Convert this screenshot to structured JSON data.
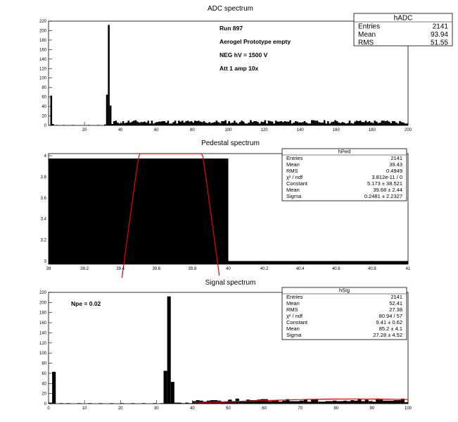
{
  "chart_data": [
    {
      "type": "bar",
      "title": "ADC spectrum",
      "xlim": [
        0,
        200
      ],
      "ylim": [
        0,
        220
      ],
      "bin_width": 1,
      "xticks": [
        20,
        40,
        60,
        80,
        100,
        120,
        140,
        160,
        180,
        200
      ],
      "yticks": [
        0,
        20,
        40,
        60,
        80,
        100,
        120,
        140,
        160,
        180,
        200,
        220
      ],
      "peaks": [
        {
          "x": 1,
          "y": 63
        },
        {
          "x": 2,
          "y": 3
        },
        {
          "x": 4,
          "y": 1
        },
        {
          "x": 8,
          "y": 1
        },
        {
          "x": 13,
          "y": 1
        },
        {
          "x": 22,
          "y": 1
        },
        {
          "x": 27,
          "y": 1
        },
        {
          "x": 31,
          "y": 2
        },
        {
          "x": 32,
          "y": 65
        },
        {
          "x": 33,
          "y": 212
        },
        {
          "x": 34,
          "y": 42
        },
        {
          "x": 35,
          "y": 3
        }
      ],
      "tail": {
        "from": 36,
        "to": 199,
        "approx_level": 8
      },
      "annotations": [
        "Run  897",
        "Aerogel Prototype empty",
        "NEG hV = 1500 V",
        "Att 1 amp 10x"
      ],
      "stats": {
        "name": "hADC",
        "rows": [
          {
            "label": "Entries",
            "value": "2141"
          },
          {
            "label": "Mean",
            "value": "93.94"
          },
          {
            "label": "RMS",
            "value": "51.55"
          }
        ]
      }
    },
    {
      "type": "bar",
      "title": "Pedestal spectrum",
      "xlim": [
        39,
        41
      ],
      "ylim": [
        2.97,
        4.02
      ],
      "xticks": [
        "39",
        "39.2",
        "39.4",
        "39.6",
        "39.8",
        "40",
        "40.2",
        "40.4",
        "40.6",
        "40.8",
        "41"
      ],
      "yticks": [
        "3",
        "3.2",
        "3.4",
        "3.6",
        "3.8",
        "4"
      ],
      "bars": [
        {
          "x0": 39,
          "x1": 40,
          "y": 4
        },
        {
          "x0": 40,
          "x1": 41,
          "y": 3
        }
      ],
      "fit": {
        "function": "gaus",
        "constant": 5.173,
        "mean": 39.68,
        "sigma": 0.2481
      },
      "stats": {
        "name": "hPed",
        "rows": [
          {
            "label": "Entries",
            "value": "2141"
          },
          {
            "label": "Mean",
            "value": "39.43"
          },
          {
            "label": "RMS",
            "value": "0.4949"
          },
          {
            "label": "χ² / ndf",
            "value": "3.812e-11 / 0"
          },
          {
            "label": "Constant",
            "value": "5.173 ± 38.521"
          },
          {
            "label": "Mean",
            "value": "39.68 ± 2.44"
          },
          {
            "label": "Sigma",
            "value": "0.2481 ± 2.2327"
          }
        ]
      }
    },
    {
      "type": "bar",
      "title": "Signal spectrum",
      "xlim": [
        0,
        100
      ],
      "ylim": [
        0,
        220
      ],
      "bin_width": 1,
      "xticks": [
        0,
        10,
        20,
        30,
        40,
        50,
        60,
        70,
        80,
        90,
        100
      ],
      "yticks": [
        0,
        20,
        40,
        60,
        80,
        100,
        120,
        140,
        160,
        180,
        200,
        220
      ],
      "peaks": [
        {
          "x": 0,
          "y": 2
        },
        {
          "x": 1,
          "y": 63
        },
        {
          "x": 3,
          "y": 1
        },
        {
          "x": 5,
          "y": 1
        },
        {
          "x": 8,
          "y": 1
        },
        {
          "x": 11,
          "y": 1
        },
        {
          "x": 14,
          "y": 1
        },
        {
          "x": 17,
          "y": 1
        },
        {
          "x": 20,
          "y": 1
        },
        {
          "x": 23,
          "y": 1
        },
        {
          "x": 26,
          "y": 1
        },
        {
          "x": 29,
          "y": 1
        },
        {
          "x": 31,
          "y": 1
        },
        {
          "x": 32,
          "y": 65
        },
        {
          "x": 33,
          "y": 212
        },
        {
          "x": 34,
          "y": 43
        },
        {
          "x": 35,
          "y": 2
        },
        {
          "x": 36,
          "y": 2
        },
        {
          "x": 37,
          "y": 1
        },
        {
          "x": 38,
          "y": 2
        },
        {
          "x": 39,
          "y": 1
        }
      ],
      "tail": {
        "from": 40,
        "to": 99,
        "approx_level": 7
      },
      "fit": {
        "function": "gaus",
        "constant": 9.41,
        "mean": 85.2,
        "sigma": 27.28,
        "range": [
          40,
          100
        ]
      },
      "annotations": [
        "Npe = 0.02"
      ],
      "stats": {
        "name": "hSig",
        "rows": [
          {
            "label": "Entries",
            "value": "2141"
          },
          {
            "label": "Mean",
            "value": "52.41"
          },
          {
            "label": "RMS",
            "value": "27.38"
          },
          {
            "label": "χ² / ndf",
            "value": "80.94 / 57"
          },
          {
            "label": "Constant",
            "value": "9.41 ± 0.62"
          },
          {
            "label": "Mean",
            "value": "85.2 ± 4.1"
          },
          {
            "label": "Sigma",
            "value": "27.28 ± 4.52"
          }
        ]
      }
    }
  ]
}
